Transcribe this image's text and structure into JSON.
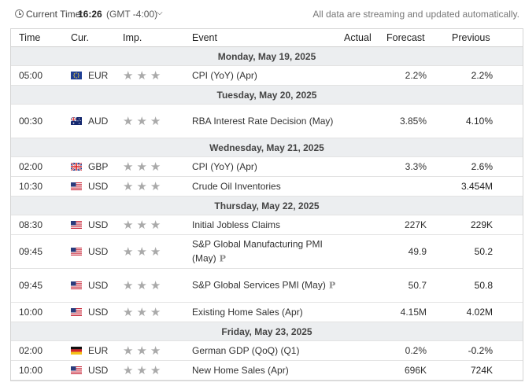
{
  "topbar": {
    "time_label": "Current Time:",
    "time_value": "16:26",
    "timezone": "(GMT -4:00)",
    "note": "All data are streaming and updated automatically."
  },
  "columns": {
    "time": "Time",
    "currency": "Cur.",
    "importance": "Imp.",
    "event": "Event",
    "actual": "Actual",
    "forecast": "Forecast",
    "previous": "Previous"
  },
  "days": [
    {
      "label": "Monday, May 19, 2025",
      "events": [
        {
          "time": "05:00",
          "flag": "eu",
          "currency": "EUR",
          "stars": "★★★",
          "event": "CPI (YoY) (Apr)",
          "actual": "",
          "forecast": "2.2%",
          "previous": "2.2%"
        }
      ]
    },
    {
      "label": "Tuesday, May 20, 2025",
      "events": [
        {
          "time": "00:30",
          "flag": "au",
          "currency": "AUD",
          "stars": "★★★",
          "event": "RBA Interest Rate Decision (May)",
          "actual": "",
          "forecast": "3.85%",
          "previous": "4.10%"
        }
      ]
    },
    {
      "label": "Wednesday, May 21, 2025",
      "events": [
        {
          "time": "02:00",
          "flag": "gb",
          "currency": "GBP",
          "stars": "★★★",
          "event": "CPI (YoY) (Apr)",
          "actual": "",
          "forecast": "3.3%",
          "previous": "2.6%"
        },
        {
          "time": "10:30",
          "flag": "us",
          "currency": "USD",
          "stars": "★★★",
          "event": "Crude Oil Inventories",
          "actual": "",
          "forecast": "",
          "previous": "3.454M"
        }
      ]
    },
    {
      "label": "Thursday, May 22, 2025",
      "events": [
        {
          "time": "08:30",
          "flag": "us",
          "currency": "USD",
          "stars": "★★★",
          "event": "Initial Jobless Claims",
          "actual": "",
          "forecast": "227K",
          "previous": "229K"
        },
        {
          "time": "09:45",
          "flag": "us",
          "currency": "USD",
          "stars": "★★★",
          "event": "S&P Global Manufacturing PMI (May)",
          "prelim": "P",
          "actual": "",
          "forecast": "49.9",
          "previous": "50.2"
        },
        {
          "time": "09:45",
          "flag": "us",
          "currency": "USD",
          "stars": "★★★",
          "event": "S&P Global Services PMI (May)",
          "prelim": "P",
          "actual": "",
          "forecast": "50.7",
          "previous": "50.8"
        },
        {
          "time": "10:00",
          "flag": "us",
          "currency": "USD",
          "stars": "★★★",
          "event": "Existing Home Sales (Apr)",
          "actual": "",
          "forecast": "4.15M",
          "previous": "4.02M"
        }
      ]
    },
    {
      "label": "Friday, May 23, 2025",
      "events": [
        {
          "time": "02:00",
          "flag": "de",
          "currency": "EUR",
          "stars": "★★★",
          "event": "German GDP (QoQ) (Q1)",
          "actual": "",
          "forecast": "0.2%",
          "previous": "-0.2%"
        },
        {
          "time": "10:00",
          "flag": "us",
          "currency": "USD",
          "stars": "★★★",
          "event": "New Home Sales (Apr)",
          "actual": "",
          "forecast": "696K",
          "previous": "724K"
        }
      ]
    }
  ],
  "colors": {
    "star_inactive": "#aaaaaa",
    "day_row_bg": "#eceef0",
    "border": "#d4d4d4"
  }
}
